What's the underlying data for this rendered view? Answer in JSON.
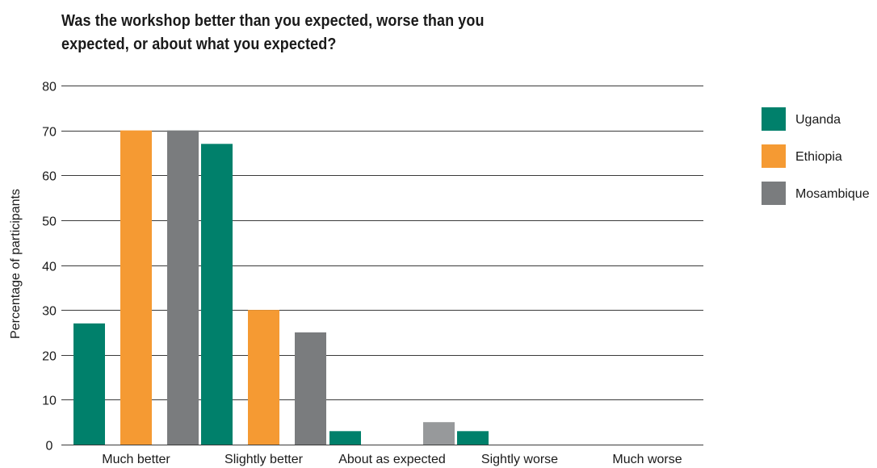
{
  "chart_data": {
    "type": "bar",
    "title": "Was the workshop better than you expected, worse than you expected, or about what you expected?",
    "xlabel": "",
    "ylabel": "Percentage of participants",
    "ylim": [
      0,
      80
    ],
    "yticks": [
      0,
      10,
      20,
      30,
      40,
      50,
      60,
      70,
      80
    ],
    "grid": true,
    "legend_position": "right",
    "categories": [
      "Much better",
      "Slightly better",
      "About as expected",
      "Sightly worse",
      "Much worse"
    ],
    "series": [
      {
        "name": "Uganda",
        "color": "#00806b",
        "values": [
          27,
          67,
          3,
          3,
          0
        ]
      },
      {
        "name": "Ethiopia",
        "color": "#f59a33",
        "values": [
          70,
          30,
          0,
          0,
          0
        ]
      },
      {
        "name": "Mosambique",
        "color": "#7a7c7e",
        "values": [
          70,
          25,
          5,
          0,
          0
        ]
      }
    ]
  }
}
